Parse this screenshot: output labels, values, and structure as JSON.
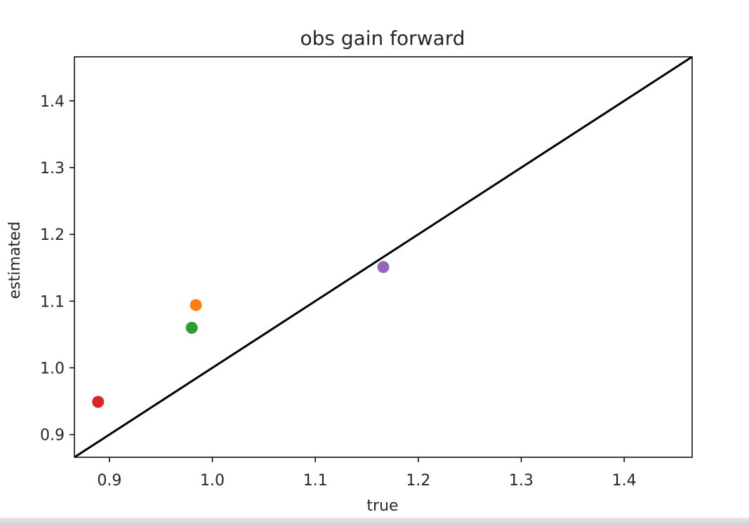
{
  "chart_data": {
    "type": "scatter",
    "title": "obs gain forward",
    "xlabel": "true",
    "ylabel": "estimated",
    "xlim": [
      0.866,
      1.466
    ],
    "ylim": [
      0.866,
      1.466
    ],
    "xticks": [
      0.9,
      1.0,
      1.1,
      1.2,
      1.3,
      1.4
    ],
    "yticks": [
      0.9,
      1.0,
      1.1,
      1.2,
      1.3,
      1.4
    ],
    "xtick_labels": [
      "0.9",
      "1.0",
      "1.1",
      "1.2",
      "1.3",
      "1.4"
    ],
    "ytick_labels": [
      "0.9",
      "1.0",
      "1.1",
      "1.2",
      "1.3",
      "1.4"
    ],
    "grid": false,
    "reference_line": {
      "x": [
        0.866,
        1.466
      ],
      "y": [
        0.866,
        1.466
      ],
      "color": "#000000"
    },
    "points": [
      {
        "x": 0.984,
        "y": 1.094,
        "color": "#ff7f0e"
      },
      {
        "x": 0.98,
        "y": 1.06,
        "color": "#2ca02c"
      },
      {
        "x": 0.889,
        "y": 0.949,
        "color": "#d62728"
      },
      {
        "x": 1.166,
        "y": 1.151,
        "color": "#9467bd"
      }
    ]
  }
}
